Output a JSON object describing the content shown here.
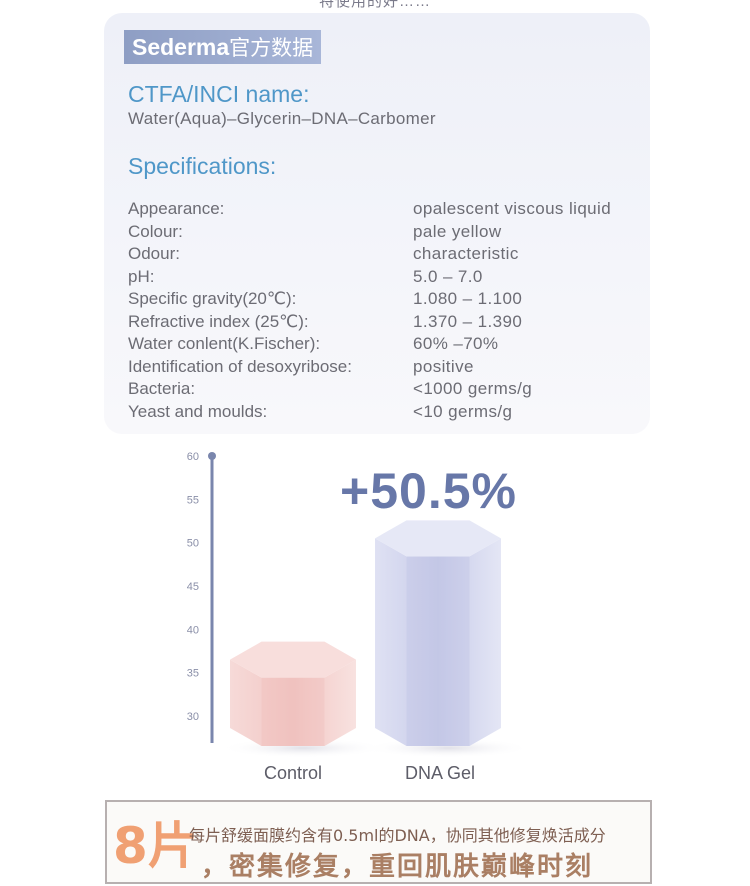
{
  "top_fragment": "特使用的好……",
  "brand": {
    "name": "Sederma",
    "suffix": "官方数据"
  },
  "inci": {
    "title": "CTFA/INCI name:",
    "value": "Water(Aqua)–Glycerin–DNA–Carbomer"
  },
  "specs": {
    "title": "Specifications:",
    "rows": [
      {
        "key": "Appearance:",
        "value": "opalescent viscous liquid"
      },
      {
        "key": "Colour:",
        "value": "pale yellow"
      },
      {
        "key": "Odour:",
        "value": "characteristic"
      },
      {
        "key": "pH:",
        "value": "5.0 – 7.0"
      },
      {
        "key": "Specific gravity(20℃):",
        "value": "1.080 – 1.100"
      },
      {
        "key": "Refractive index (25℃):",
        "value": "1.370 – 1.390"
      },
      {
        "key": "Water conlent(K.Fischer):",
        "value": "60% –70%"
      },
      {
        "key": "Identification of desoxyribose:",
        "value": "positive"
      },
      {
        "key": "Bacteria:",
        "value": "<1000 germs/g"
      },
      {
        "key": "Yeast and moulds:",
        "value": "<10 germs/g"
      }
    ]
  },
  "chart_data": {
    "type": "bar",
    "categories": [
      "Control",
      "DNA Gel"
    ],
    "values": [
      36.5,
      50.5
    ],
    "y_ticks": [
      "60",
      "55",
      "50",
      "45",
      "40",
      "35",
      "30"
    ],
    "ylim": [
      30,
      60
    ],
    "annotation": "+50.5%",
    "colors": {
      "control": "#f3c9c6",
      "dna_gel": "#c9cdea",
      "axis": "#7a86ad"
    }
  },
  "banner": {
    "big": "8片",
    "line1": "每片舒缓面膜约含有0.5ml的DNA，协同其他修复焕活成分",
    "line2": "，密集修复，重回肌肤巅峰时刻"
  }
}
